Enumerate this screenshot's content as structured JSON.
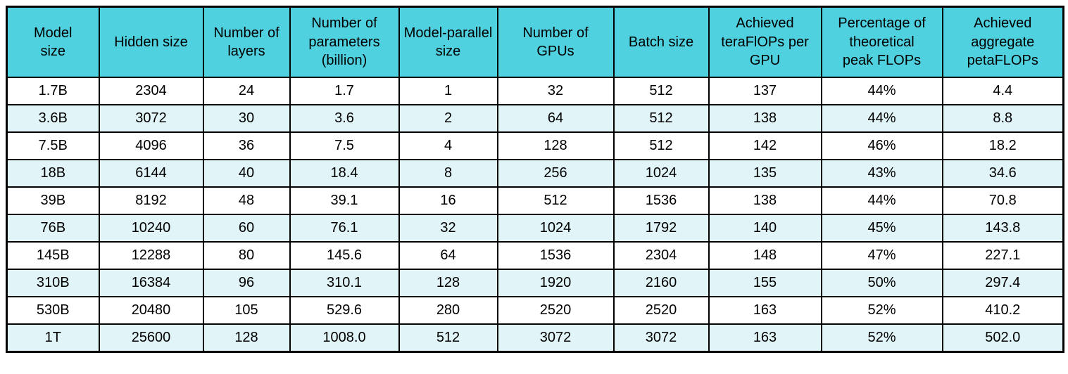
{
  "colors": {
    "header_bg": "#4FD1E0",
    "row_bg": "#FFFFFF",
    "row_alt_bg": "#E1F5F9",
    "border": "#000000"
  },
  "table": {
    "header_labels": [
      "Model\nsize",
      "Hidden size",
      "Number of\nlayers",
      "Number of\nparameters\n(billion)",
      "Model-parallel\nsize",
      "Number of\nGPUs",
      "Batch size",
      "Achieved\nteraFlOPs per\nGPU",
      "Percentage of\ntheoretical\npeak FLOPs",
      "Achieved\naggregate\npetaFLOPs"
    ]
  },
  "chart_data": {
    "type": "table",
    "columns": [
      "Model size",
      "Hidden size",
      "Number of layers",
      "Number of parameters (billion)",
      "Model-parallel size",
      "Number of GPUs",
      "Batch size",
      "Achieved teraFlOPs per GPU",
      "Percentage of theoretical peak FLOPs",
      "Achieved aggregate petaFLOPs"
    ],
    "rows": [
      [
        "1.7B",
        "2304",
        "24",
        "1.7",
        "1",
        "32",
        "512",
        "137",
        "44%",
        "4.4"
      ],
      [
        "3.6B",
        "3072",
        "30",
        "3.6",
        "2",
        "64",
        "512",
        "138",
        "44%",
        "8.8"
      ],
      [
        "7.5B",
        "4096",
        "36",
        "7.5",
        "4",
        "128",
        "512",
        "142",
        "46%",
        "18.2"
      ],
      [
        "18B",
        "6144",
        "40",
        "18.4",
        "8",
        "256",
        "1024",
        "135",
        "43%",
        "34.6"
      ],
      [
        "39B",
        "8192",
        "48",
        "39.1",
        "16",
        "512",
        "1536",
        "138",
        "44%",
        "70.8"
      ],
      [
        "76B",
        "10240",
        "60",
        "76.1",
        "32",
        "1024",
        "1792",
        "140",
        "45%",
        "143.8"
      ],
      [
        "145B",
        "12288",
        "80",
        "145.6",
        "64",
        "1536",
        "2304",
        "148",
        "47%",
        "227.1"
      ],
      [
        "310B",
        "16384",
        "96",
        "310.1",
        "128",
        "1920",
        "2160",
        "155",
        "50%",
        "297.4"
      ],
      [
        "530B",
        "20480",
        "105",
        "529.6",
        "280",
        "2520",
        "2520",
        "163",
        "52%",
        "410.2"
      ],
      [
        "1T",
        "25600",
        "128",
        "1008.0",
        "512",
        "3072",
        "3072",
        "163",
        "52%",
        "502.0"
      ]
    ]
  }
}
